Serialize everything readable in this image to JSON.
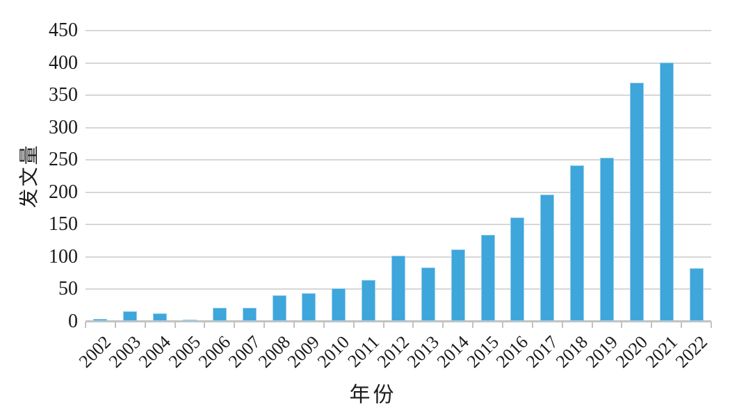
{
  "chart_data": {
    "type": "bar",
    "title": "",
    "xlabel": "年份",
    "ylabel": "发文量",
    "categories": [
      "2002",
      "2003",
      "2004",
      "2005",
      "2006",
      "2007",
      "2008",
      "2009",
      "2010",
      "2011",
      "2012",
      "2013",
      "2014",
      "2015",
      "2016",
      "2017",
      "2018",
      "2019",
      "2020",
      "2021",
      "2022"
    ],
    "values": [
      3,
      15,
      12,
      2,
      20,
      20,
      40,
      43,
      50,
      63,
      101,
      83,
      111,
      133,
      160,
      195,
      241,
      252,
      368,
      400,
      82
    ],
    "ylim": [
      0,
      450
    ],
    "ytick_step": 50,
    "yticks": [
      0,
      50,
      100,
      150,
      200,
      250,
      300,
      350,
      400,
      450
    ],
    "grid": true,
    "legend_position": "none",
    "colors": {
      "bar": "#3ea6db",
      "gridline": "#d6d6d6",
      "axis": "#c2c2c2",
      "tick": "#c2c2c2",
      "text": "#1a1a1a"
    }
  }
}
